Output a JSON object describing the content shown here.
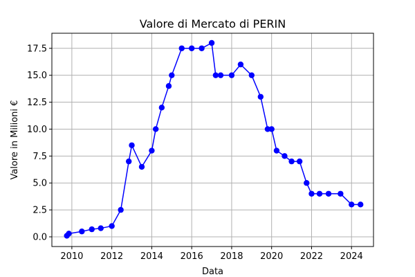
{
  "chart_data": {
    "type": "line",
    "title": "Valore di Mercato di PERIN",
    "xlabel": "Data",
    "ylabel": "Valore in Milioni €",
    "xlim": [
      2009.0,
      2025.1
    ],
    "ylim": [
      -0.9,
      18.9
    ],
    "xticks": [
      2010,
      2012,
      2014,
      2016,
      2018,
      2020,
      2022,
      2024
    ],
    "xtick_labels": [
      "2010",
      "2012",
      "2014",
      "2016",
      "2018",
      "2020",
      "2022",
      "2024"
    ],
    "yticks": [
      0.0,
      2.5,
      5.0,
      7.5,
      10.0,
      12.5,
      15.0,
      17.5
    ],
    "ytick_labels": [
      "0.0",
      "2.5",
      "5.0",
      "7.5",
      "10.0",
      "12.5",
      "15.0",
      "17.5"
    ],
    "grid": true,
    "color": "#0000ff",
    "marker": "circle",
    "series": [
      {
        "x": [
          2009.75,
          2009.85,
          2010.5,
          2011.0,
          2011.45,
          2012.0,
          2012.45,
          2012.85,
          2013.0,
          2013.5,
          2014.0,
          2014.2,
          2014.5,
          2014.85,
          2015.0,
          2015.5,
          2016.0,
          2016.5,
          2017.0,
          2017.2,
          2017.45,
          2018.0,
          2018.45,
          2019.0,
          2019.45,
          2019.8,
          2020.0,
          2020.25,
          2020.65,
          2021.0,
          2021.4,
          2021.75,
          2022.0,
          2022.4,
          2022.85,
          2023.45,
          2024.0,
          2024.45
        ],
        "y": [
          0.1,
          0.3,
          0.5,
          0.7,
          0.8,
          1.0,
          2.5,
          7.0,
          8.5,
          6.5,
          8.0,
          10.0,
          12.0,
          14.0,
          15.0,
          17.5,
          17.5,
          17.5,
          18.0,
          15.0,
          15.0,
          15.0,
          16.0,
          15.0,
          13.0,
          10.0,
          10.0,
          8.0,
          7.5,
          7.0,
          7.0,
          5.0,
          4.0,
          4.0,
          4.0,
          4.0,
          3.0,
          3.0
        ]
      }
    ]
  }
}
